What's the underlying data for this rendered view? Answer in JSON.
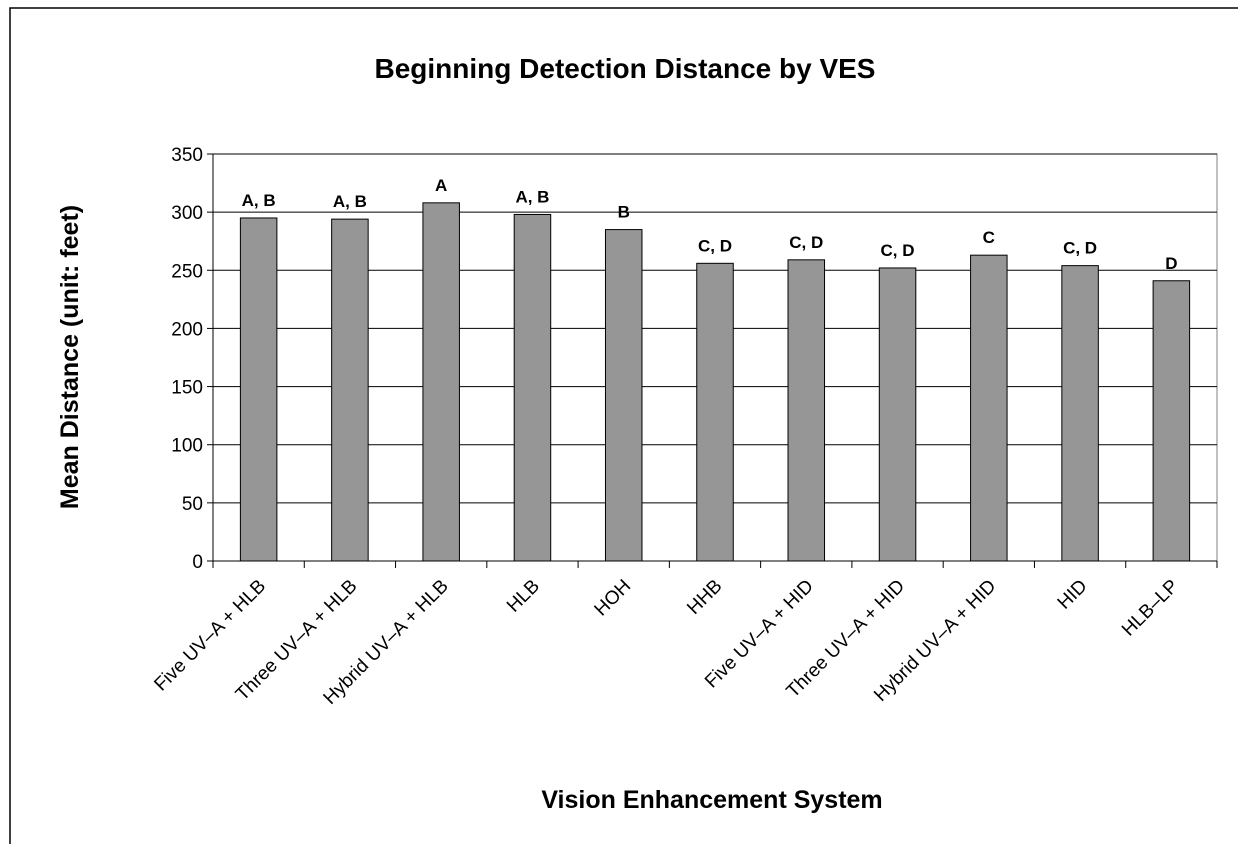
{
  "chart_data": {
    "type": "bar",
    "title": "Beginning Detection Distance by VES",
    "xlabel": "Vision Enhancement System",
    "ylabel": "Mean Distance (unit: feet)",
    "categories": [
      "Five UV–A + HLB",
      "Three UV–A + HLB",
      "Hybrid UV–A + HLB",
      "HLB",
      "HOH",
      "HHB",
      "Five UV–A + HID",
      "Three UV–A + HID",
      "Hybrid UV–A + HID",
      "HID",
      "HLB–LP"
    ],
    "values": [
      295,
      294,
      308,
      298,
      285,
      256,
      259,
      252,
      263,
      254,
      241
    ],
    "annotations": [
      "A, B",
      "A, B",
      "A",
      "A, B",
      "B",
      "C, D",
      "C, D",
      "C, D",
      "C",
      "C, D",
      "D"
    ],
    "color": "#969696",
    "ylim": [
      0,
      350
    ],
    "yticks": [
      0,
      50,
      100,
      150,
      200,
      250,
      300,
      350
    ],
    "grid": true
  }
}
